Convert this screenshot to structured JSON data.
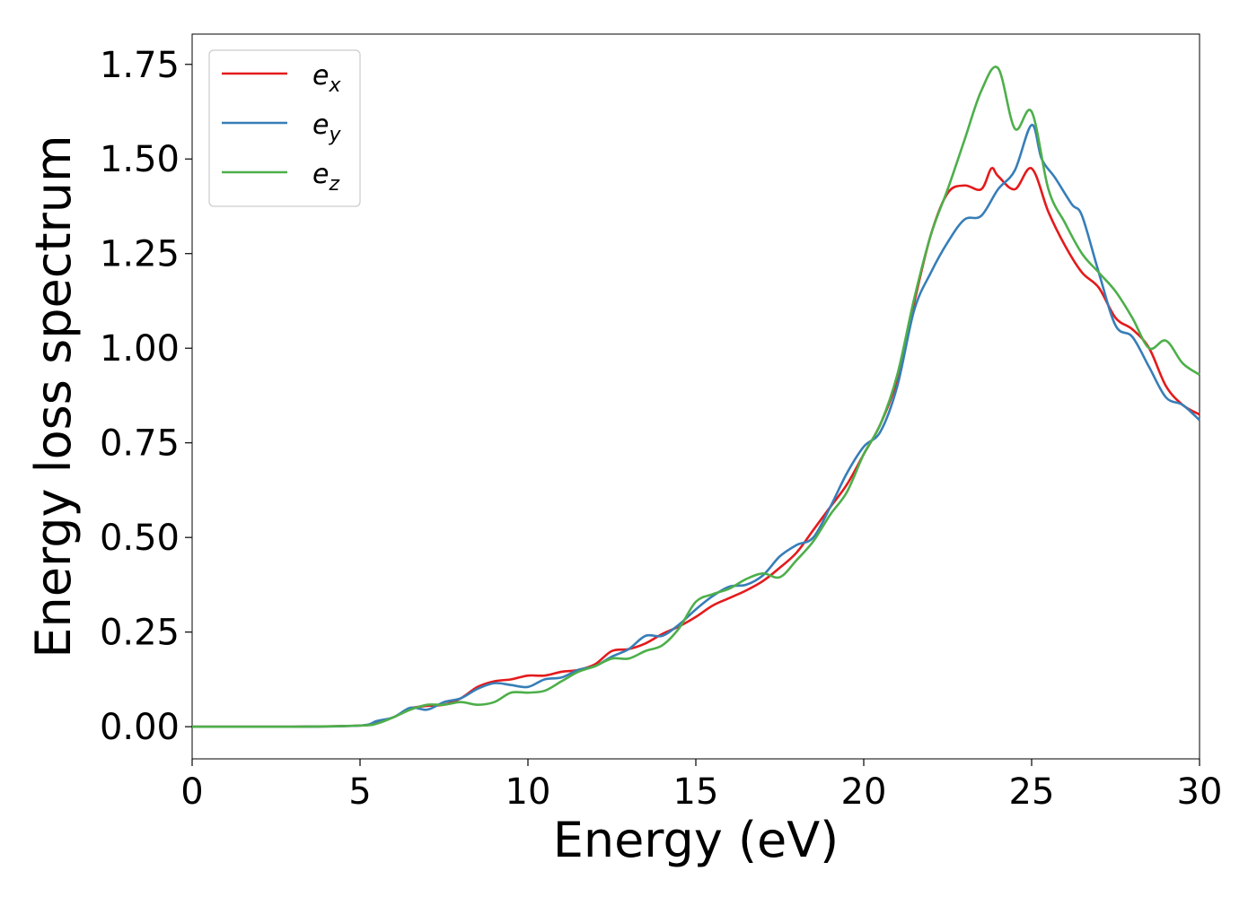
{
  "chart_data": {
    "type": "line",
    "xlabel": "Energy (eV)",
    "ylabel": "Energy loss spectrum",
    "xlim": [
      0,
      30
    ],
    "ylim": [
      -0.085,
      1.83
    ],
    "x_ticks": [
      0,
      5,
      10,
      15,
      20,
      25,
      30
    ],
    "x_tick_labels": [
      "0",
      "5",
      "10",
      "15",
      "20",
      "25",
      "30"
    ],
    "y_ticks": [
      0.0,
      0.25,
      0.5,
      0.75,
      1.0,
      1.25,
      1.5,
      1.75
    ],
    "y_tick_labels": [
      "0.00",
      "0.25",
      "0.50",
      "0.75",
      "1.00",
      "1.25",
      "1.50",
      "1.75"
    ],
    "grid": false,
    "legend_position": "top-left",
    "series": [
      {
        "name": "e",
        "subscript": "x",
        "color": "#e41a1c",
        "points": [
          [
            0,
            0
          ],
          [
            3,
            0
          ],
          [
            5,
            0.003
          ],
          [
            5.5,
            0.01
          ],
          [
            6,
            0.025
          ],
          [
            6.5,
            0.048
          ],
          [
            7,
            0.055
          ],
          [
            7.5,
            0.058
          ],
          [
            8,
            0.075
          ],
          [
            8.5,
            0.105
          ],
          [
            9,
            0.12
          ],
          [
            9.5,
            0.125
          ],
          [
            10,
            0.135
          ],
          [
            10.5,
            0.135
          ],
          [
            11,
            0.145
          ],
          [
            11.5,
            0.15
          ],
          [
            12,
            0.165
          ],
          [
            12.5,
            0.2
          ],
          [
            13,
            0.205
          ],
          [
            13.5,
            0.22
          ],
          [
            14,
            0.245
          ],
          [
            14.5,
            0.265
          ],
          [
            15,
            0.29
          ],
          [
            15.5,
            0.32
          ],
          [
            16,
            0.34
          ],
          [
            16.5,
            0.36
          ],
          [
            17,
            0.385
          ],
          [
            17.5,
            0.42
          ],
          [
            18,
            0.46
          ],
          [
            18.5,
            0.52
          ],
          [
            19,
            0.58
          ],
          [
            19.5,
            0.64
          ],
          [
            20,
            0.72
          ],
          [
            20.5,
            0.8
          ],
          [
            21,
            0.92
          ],
          [
            21.5,
            1.12
          ],
          [
            22,
            1.3
          ],
          [
            22.5,
            1.41
          ],
          [
            23,
            1.43
          ],
          [
            23.5,
            1.42
          ],
          [
            23.8,
            1.475
          ],
          [
            24,
            1.455
          ],
          [
            24.5,
            1.42
          ],
          [
            25,
            1.475
          ],
          [
            25.5,
            1.36
          ],
          [
            26,
            1.27
          ],
          [
            26.5,
            1.2
          ],
          [
            27,
            1.16
          ],
          [
            27.5,
            1.08
          ],
          [
            28,
            1.05
          ],
          [
            28.5,
            1.0
          ],
          [
            29,
            0.9
          ],
          [
            29.5,
            0.85
          ],
          [
            30,
            0.825
          ]
        ]
      },
      {
        "name": "e",
        "subscript": "y",
        "color": "#377eb8",
        "points": [
          [
            0,
            0
          ],
          [
            3,
            0
          ],
          [
            5,
            0.003
          ],
          [
            5.5,
            0.015
          ],
          [
            6,
            0.025
          ],
          [
            6.5,
            0.05
          ],
          [
            7,
            0.045
          ],
          [
            7.5,
            0.065
          ],
          [
            8,
            0.075
          ],
          [
            8.5,
            0.1
          ],
          [
            9,
            0.115
          ],
          [
            9.5,
            0.11
          ],
          [
            10,
            0.105
          ],
          [
            10.5,
            0.125
          ],
          [
            11,
            0.13
          ],
          [
            11.5,
            0.15
          ],
          [
            12,
            0.16
          ],
          [
            12.5,
            0.185
          ],
          [
            13,
            0.205
          ],
          [
            13.5,
            0.24
          ],
          [
            14,
            0.24
          ],
          [
            14.5,
            0.27
          ],
          [
            15,
            0.31
          ],
          [
            15.5,
            0.345
          ],
          [
            16,
            0.37
          ],
          [
            16.5,
            0.375
          ],
          [
            17,
            0.4
          ],
          [
            17.5,
            0.45
          ],
          [
            18,
            0.48
          ],
          [
            18.5,
            0.5
          ],
          [
            19,
            0.58
          ],
          [
            19.5,
            0.67
          ],
          [
            20,
            0.74
          ],
          [
            20.5,
            0.78
          ],
          [
            21,
            0.9
          ],
          [
            21.5,
            1.1
          ],
          [
            22,
            1.2
          ],
          [
            22.5,
            1.28
          ],
          [
            23,
            1.34
          ],
          [
            23.5,
            1.35
          ],
          [
            24,
            1.42
          ],
          [
            24.5,
            1.47
          ],
          [
            25,
            1.59
          ],
          [
            25.3,
            1.5
          ],
          [
            25.7,
            1.45
          ],
          [
            26.2,
            1.38
          ],
          [
            26.5,
            1.35
          ],
          [
            27,
            1.2
          ],
          [
            27.5,
            1.06
          ],
          [
            28,
            1.03
          ],
          [
            28.5,
            0.95
          ],
          [
            29,
            0.87
          ],
          [
            29.5,
            0.85
          ],
          [
            30,
            0.81
          ]
        ]
      },
      {
        "name": "e",
        "subscript": "z",
        "color": "#4daf4a",
        "points": [
          [
            0,
            0
          ],
          [
            3,
            0
          ],
          [
            5,
            0.003
          ],
          [
            5.5,
            0.008
          ],
          [
            6,
            0.025
          ],
          [
            6.5,
            0.045
          ],
          [
            7,
            0.058
          ],
          [
            7.5,
            0.058
          ],
          [
            8,
            0.065
          ],
          [
            8.5,
            0.058
          ],
          [
            9,
            0.065
          ],
          [
            9.5,
            0.09
          ],
          [
            10,
            0.09
          ],
          [
            10.5,
            0.095
          ],
          [
            11,
            0.12
          ],
          [
            11.5,
            0.145
          ],
          [
            12,
            0.16
          ],
          [
            12.5,
            0.18
          ],
          [
            13,
            0.18
          ],
          [
            13.5,
            0.2
          ],
          [
            14,
            0.215
          ],
          [
            14.5,
            0.26
          ],
          [
            15,
            0.33
          ],
          [
            15.5,
            0.35
          ],
          [
            16,
            0.365
          ],
          [
            16.5,
            0.39
          ],
          [
            17,
            0.405
          ],
          [
            17.5,
            0.395
          ],
          [
            18,
            0.44
          ],
          [
            18.5,
            0.49
          ],
          [
            19,
            0.56
          ],
          [
            19.5,
            0.62
          ],
          [
            20,
            0.72
          ],
          [
            20.5,
            0.8
          ],
          [
            21,
            0.93
          ],
          [
            21.5,
            1.13
          ],
          [
            22,
            1.3
          ],
          [
            22.5,
            1.42
          ],
          [
            23,
            1.55
          ],
          [
            23.5,
            1.68
          ],
          [
            24,
            1.74
          ],
          [
            24.5,
            1.58
          ],
          [
            25,
            1.625
          ],
          [
            25.5,
            1.42
          ],
          [
            26,
            1.33
          ],
          [
            26.5,
            1.25
          ],
          [
            27,
            1.2
          ],
          [
            27.5,
            1.15
          ],
          [
            28,
            1.08
          ],
          [
            28.5,
            1.0
          ],
          [
            29,
            1.02
          ],
          [
            29.5,
            0.96
          ],
          [
            30,
            0.93
          ]
        ]
      }
    ]
  }
}
